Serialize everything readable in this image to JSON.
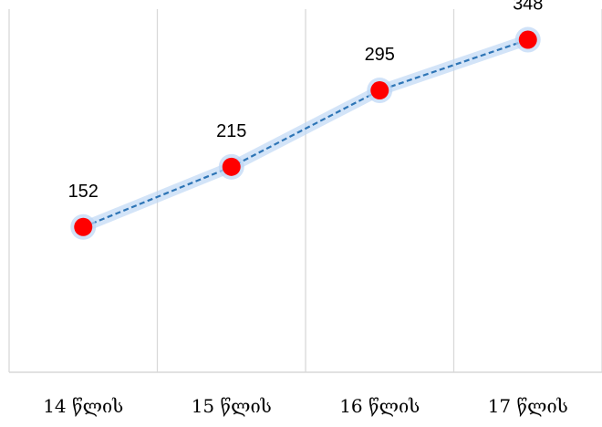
{
  "chart_data": {
    "type": "line",
    "categories": [
      "14 წლის",
      "15 წლის",
      "16 წლის",
      "17 წლის"
    ],
    "series": [
      {
        "values": [
          152,
          215,
          295,
          348
        ]
      }
    ],
    "ylim": [
      0,
      380
    ],
    "grid": {
      "vertical": true,
      "horizontal": false
    },
    "legend": "none",
    "colors": {
      "line": "#2e75b6",
      "marker": "#ff0000",
      "glow": "#bcd6f5",
      "grid": "#d9d9d9"
    }
  }
}
